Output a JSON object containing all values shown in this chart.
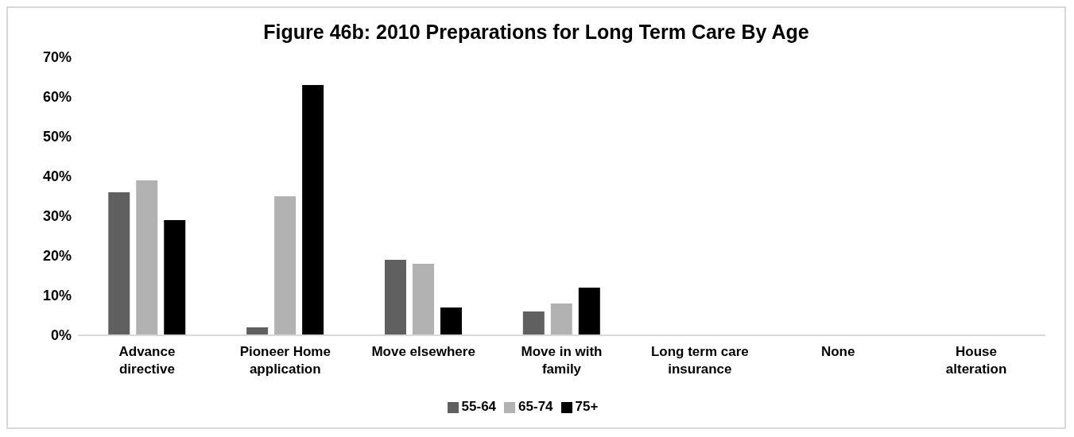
{
  "chart_data": {
    "type": "bar",
    "title": "Figure 46b: 2010 Preparations for Long Term Care By Age",
    "categories": [
      "Advance directive",
      "Pioneer Home application",
      "Move elsewhere",
      "Move in with family",
      "Long term care insurance",
      "None",
      "House alteration"
    ],
    "series": [
      {
        "name": "55-64",
        "color": "#606060",
        "values": [
          36,
          2,
          19,
          6,
          0,
          0,
          0
        ]
      },
      {
        "name": "65-74",
        "color": "#b2b2b2",
        "values": [
          39,
          35,
          18,
          8,
          0,
          0,
          0
        ]
      },
      {
        "name": "75+",
        "color": "#000000",
        "values": [
          29,
          63,
          7,
          12,
          0,
          0,
          0
        ]
      }
    ],
    "ylim": [
      0,
      70
    ],
    "yticks": [
      {
        "value": 0,
        "label": "0%"
      },
      {
        "value": 10,
        "label": "10%"
      },
      {
        "value": 20,
        "label": "20%"
      },
      {
        "value": 30,
        "label": "30%"
      },
      {
        "value": 40,
        "label": "40%"
      },
      {
        "value": 50,
        "label": "50%"
      },
      {
        "value": 60,
        "label": "60%"
      },
      {
        "value": 70,
        "label": "70%"
      }
    ],
    "grid": false,
    "legend": "bottom"
  }
}
